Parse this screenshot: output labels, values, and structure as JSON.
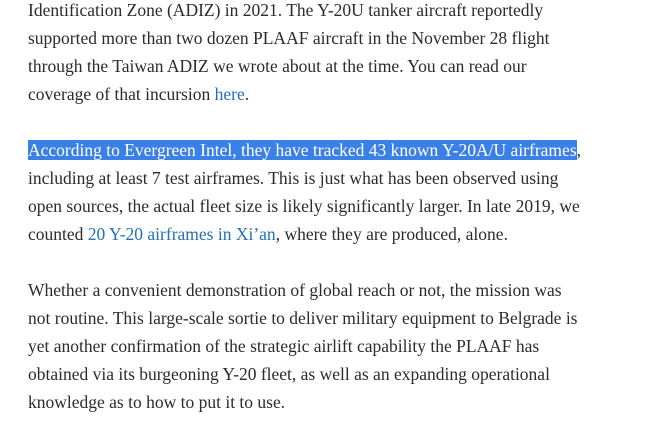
{
  "paragraphs": [
    {
      "lines": [
        [
          {
            "text": "Identification Zone (ADIZ) in 2021. The Y-20U tanker aircraft reportedly"
          }
        ],
        [
          {
            "text": "supported more than two dozen PLAAF aircraft in the November 28 flight"
          }
        ],
        [
          {
            "text": "through the Taiwan ADIZ we wrote about at the time. You can read our"
          }
        ],
        [
          {
            "text": "coverage of that incursion "
          },
          {
            "text": "here",
            "style": "link"
          },
          {
            "text": "."
          }
        ]
      ]
    },
    {
      "lines": [
        [
          {
            "text": "According to Evergreen Intel, they have tracked 43 known Y-20A/U airframes",
            "style": "highlight"
          },
          {
            "text": ","
          }
        ],
        [
          {
            "text": "including at least 7 test airframes. This is just what has been observed using"
          }
        ],
        [
          {
            "text": "open sources, the actual fleet size is likely significantly larger. In late 2019, we"
          }
        ],
        [
          {
            "text": "counted "
          },
          {
            "text": "20 Y-20 airframes in Xi’an",
            "style": "link"
          },
          {
            "text": ", where they are produced, alone."
          }
        ]
      ]
    },
    {
      "lines": [
        [
          {
            "text": "Whether a convenient demonstration of global reach or not, the mission was"
          }
        ],
        [
          {
            "text": "not routine. This large-scale sortie to deliver military equipment to Belgrade is"
          }
        ],
        [
          {
            "text": "yet another confirmation of the strategic airlift capability the PLAAF has"
          }
        ],
        [
          {
            "text": "obtained via its burgeoning Y-20 fleet, as well as an expanding operational"
          }
        ],
        [
          {
            "text": "knowledge as to how to put it to use."
          }
        ]
      ]
    }
  ]
}
